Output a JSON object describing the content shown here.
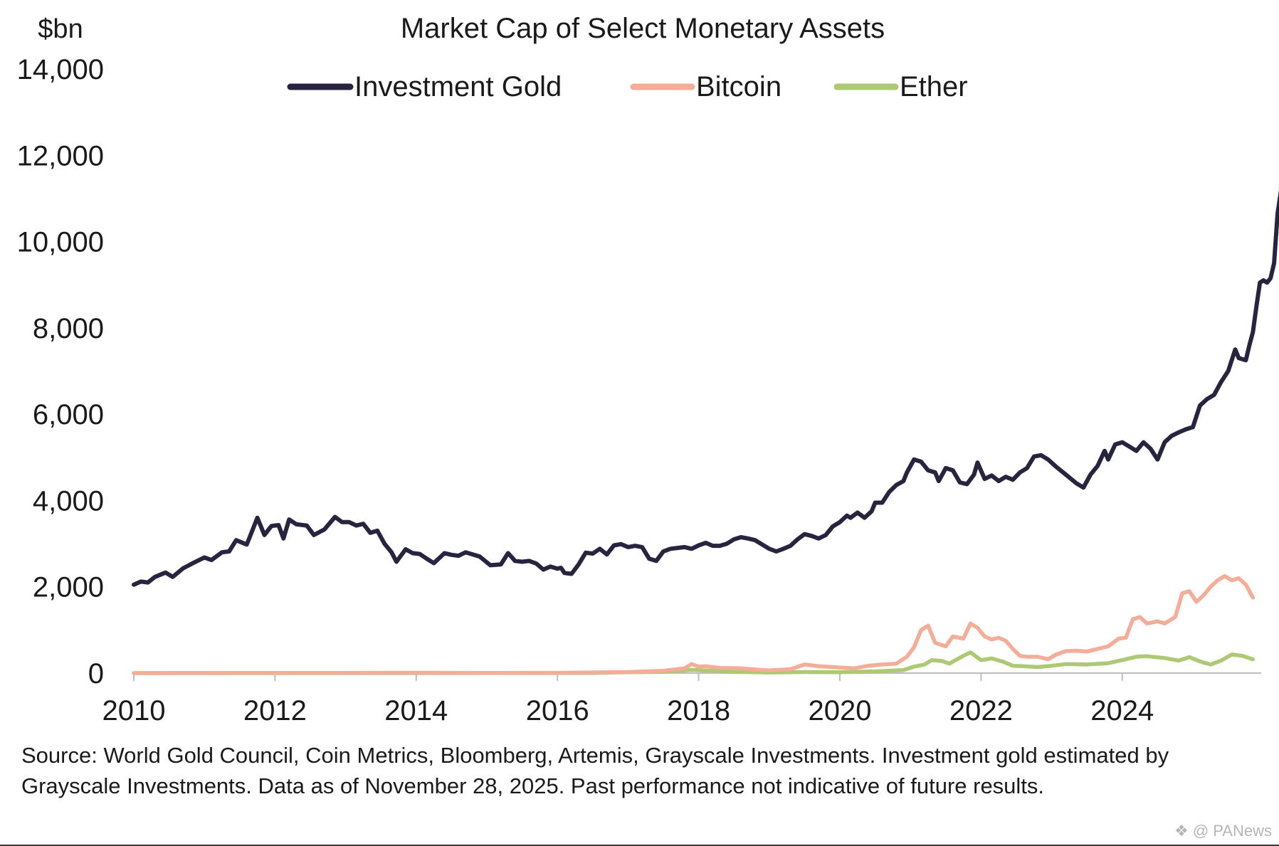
{
  "chart_data": {
    "type": "line",
    "title": "Market Cap of Select Monetary Assets",
    "unit_label": "$bn",
    "xlabel": "",
    "ylabel": "",
    "xlim": [
      2010.0,
      2025.95
    ],
    "ylim": [
      0,
      14000
    ],
    "x_ticks": [
      "2010",
      "2012",
      "2014",
      "2016",
      "2018",
      "2020",
      "2022",
      "2024"
    ],
    "y_ticks": [
      "0",
      "2,000",
      "4,000",
      "6,000",
      "8,000",
      "10,000",
      "12,000",
      "14,000"
    ],
    "grid": false,
    "legend_position": "top-center",
    "series": [
      {
        "name": "Investment Gold",
        "color": "#27243f",
        "points": [
          [
            2010.0,
            2050
          ],
          [
            2010.1,
            2120
          ],
          [
            2010.2,
            2100
          ],
          [
            2010.3,
            2230
          ],
          [
            2010.45,
            2330
          ],
          [
            2010.55,
            2230
          ],
          [
            2010.7,
            2430
          ],
          [
            2010.85,
            2560
          ],
          [
            2011.0,
            2680
          ],
          [
            2011.1,
            2620
          ],
          [
            2011.25,
            2800
          ],
          [
            2011.35,
            2820
          ],
          [
            2011.45,
            3080
          ],
          [
            2011.6,
            2980
          ],
          [
            2011.75,
            3600
          ],
          [
            2011.85,
            3200
          ],
          [
            2011.95,
            3410
          ],
          [
            2012.05,
            3430
          ],
          [
            2012.12,
            3120
          ],
          [
            2012.2,
            3560
          ],
          [
            2012.3,
            3450
          ],
          [
            2012.45,
            3420
          ],
          [
            2012.55,
            3200
          ],
          [
            2012.7,
            3330
          ],
          [
            2012.85,
            3620
          ],
          [
            2012.95,
            3500
          ],
          [
            2013.05,
            3500
          ],
          [
            2013.15,
            3420
          ],
          [
            2013.25,
            3460
          ],
          [
            2013.35,
            3250
          ],
          [
            2013.45,
            3300
          ],
          [
            2013.55,
            3000
          ],
          [
            2013.65,
            2800
          ],
          [
            2013.72,
            2580
          ],
          [
            2013.85,
            2870
          ],
          [
            2013.95,
            2780
          ],
          [
            2014.05,
            2760
          ],
          [
            2014.15,
            2650
          ],
          [
            2014.25,
            2550
          ],
          [
            2014.4,
            2780
          ],
          [
            2014.5,
            2740
          ],
          [
            2014.6,
            2720
          ],
          [
            2014.7,
            2800
          ],
          [
            2014.8,
            2750
          ],
          [
            2014.9,
            2700
          ],
          [
            2015.05,
            2500
          ],
          [
            2015.2,
            2520
          ],
          [
            2015.3,
            2780
          ],
          [
            2015.4,
            2600
          ],
          [
            2015.5,
            2580
          ],
          [
            2015.6,
            2600
          ],
          [
            2015.7,
            2540
          ],
          [
            2015.8,
            2400
          ],
          [
            2015.9,
            2470
          ],
          [
            2016.0,
            2420
          ],
          [
            2016.05,
            2440
          ],
          [
            2016.1,
            2320
          ],
          [
            2016.2,
            2300
          ],
          [
            2016.3,
            2520
          ],
          [
            2016.4,
            2790
          ],
          [
            2016.5,
            2770
          ],
          [
            2016.6,
            2880
          ],
          [
            2016.7,
            2750
          ],
          [
            2016.8,
            2960
          ],
          [
            2016.9,
            2990
          ],
          [
            2017.0,
            2920
          ],
          [
            2017.1,
            2950
          ],
          [
            2017.2,
            2920
          ],
          [
            2017.3,
            2650
          ],
          [
            2017.4,
            2600
          ],
          [
            2017.5,
            2820
          ],
          [
            2017.6,
            2880
          ],
          [
            2017.7,
            2900
          ],
          [
            2017.8,
            2920
          ],
          [
            2017.9,
            2880
          ],
          [
            2018.0,
            2960
          ],
          [
            2018.1,
            3020
          ],
          [
            2018.2,
            2950
          ],
          [
            2018.3,
            2950
          ],
          [
            2018.4,
            3000
          ],
          [
            2018.5,
            3100
          ],
          [
            2018.6,
            3150
          ],
          [
            2018.7,
            3120
          ],
          [
            2018.8,
            3080
          ],
          [
            2018.9,
            2980
          ],
          [
            2019.0,
            2880
          ],
          [
            2019.1,
            2820
          ],
          [
            2019.2,
            2880
          ],
          [
            2019.3,
            2950
          ],
          [
            2019.4,
            3100
          ],
          [
            2019.5,
            3220
          ],
          [
            2019.6,
            3180
          ],
          [
            2019.7,
            3120
          ],
          [
            2019.8,
            3200
          ],
          [
            2019.9,
            3400
          ],
          [
            2020.0,
            3500
          ],
          [
            2020.1,
            3650
          ],
          [
            2020.15,
            3600
          ],
          [
            2020.25,
            3720
          ],
          [
            2020.35,
            3600
          ],
          [
            2020.45,
            3750
          ],
          [
            2020.5,
            3950
          ],
          [
            2020.6,
            3950
          ],
          [
            2020.7,
            4200
          ],
          [
            2020.8,
            4360
          ],
          [
            2020.9,
            4450
          ],
          [
            2020.95,
            4650
          ],
          [
            2021.05,
            4950
          ],
          [
            2021.15,
            4900
          ],
          [
            2021.25,
            4700
          ],
          [
            2021.35,
            4650
          ],
          [
            2021.4,
            4450
          ],
          [
            2021.5,
            4750
          ],
          [
            2021.6,
            4700
          ],
          [
            2021.7,
            4420
          ],
          [
            2021.8,
            4380
          ],
          [
            2021.9,
            4600
          ],
          [
            2021.95,
            4880
          ],
          [
            2022.05,
            4500
          ],
          [
            2022.15,
            4580
          ],
          [
            2022.25,
            4450
          ],
          [
            2022.35,
            4550
          ],
          [
            2022.45,
            4480
          ],
          [
            2022.55,
            4650
          ],
          [
            2022.65,
            4750
          ],
          [
            2022.75,
            5020
          ],
          [
            2022.85,
            5050
          ],
          [
            2022.95,
            4950
          ],
          [
            2023.05,
            4800
          ],
          [
            2023.2,
            4600
          ],
          [
            2023.35,
            4400
          ],
          [
            2023.45,
            4300
          ],
          [
            2023.55,
            4600
          ],
          [
            2023.65,
            4800
          ],
          [
            2023.75,
            5150
          ],
          [
            2023.8,
            4950
          ],
          [
            2023.9,
            5300
          ],
          [
            2024.0,
            5350
          ],
          [
            2024.1,
            5250
          ],
          [
            2024.2,
            5150
          ],
          [
            2024.3,
            5350
          ],
          [
            2024.4,
            5200
          ],
          [
            2024.5,
            4950
          ],
          [
            2024.6,
            5350
          ],
          [
            2024.7,
            5500
          ],
          [
            2024.8,
            5580
          ],
          [
            2024.9,
            5650
          ],
          [
            2025.0,
            5700
          ],
          [
            2025.1,
            6200
          ],
          [
            2025.2,
            6350
          ],
          [
            2025.3,
            6450
          ],
          [
            2025.4,
            6750
          ],
          [
            2025.5,
            7000
          ],
          [
            2025.6,
            7500
          ],
          [
            2025.65,
            7300
          ],
          [
            2025.75,
            7250
          ],
          [
            2025.8,
            7600
          ],
          [
            2025.85,
            7900
          ],
          [
            2025.9,
            8500
          ],
          [
            2025.95,
            9050
          ],
          [
            2026.0,
            9100
          ],
          [
            2026.05,
            9050
          ],
          [
            2026.1,
            9150
          ],
          [
            2026.15,
            9500
          ],
          [
            2026.2,
            10650
          ],
          [
            2026.25,
            11200
          ],
          [
            2026.3,
            11700
          ]
        ]
      },
      {
        "name": "Bitcoin",
        "color": "#f3ad99",
        "points": [
          [
            2010.0,
            0
          ],
          [
            2013.0,
            5
          ],
          [
            2014.0,
            8
          ],
          [
            2015.0,
            4
          ],
          [
            2016.0,
            7
          ],
          [
            2017.0,
            25
          ],
          [
            2017.5,
            55
          ],
          [
            2017.8,
            110
          ],
          [
            2017.9,
            210
          ],
          [
            2018.0,
            150
          ],
          [
            2018.1,
            160
          ],
          [
            2018.3,
            120
          ],
          [
            2018.6,
            110
          ],
          [
            2018.9,
            70
          ],
          [
            2019.0,
            65
          ],
          [
            2019.3,
            90
          ],
          [
            2019.5,
            200
          ],
          [
            2019.7,
            160
          ],
          [
            2019.9,
            140
          ],
          [
            2020.0,
            130
          ],
          [
            2020.2,
            110
          ],
          [
            2020.4,
            170
          ],
          [
            2020.6,
            200
          ],
          [
            2020.8,
            220
          ],
          [
            2020.95,
            380
          ],
          [
            2021.05,
            600
          ],
          [
            2021.15,
            1000
          ],
          [
            2021.25,
            1100
          ],
          [
            2021.35,
            700
          ],
          [
            2021.5,
            620
          ],
          [
            2021.6,
            850
          ],
          [
            2021.75,
            800
          ],
          [
            2021.85,
            1150
          ],
          [
            2021.95,
            1050
          ],
          [
            2022.05,
            850
          ],
          [
            2022.15,
            780
          ],
          [
            2022.25,
            820
          ],
          [
            2022.35,
            750
          ],
          [
            2022.45,
            560
          ],
          [
            2022.55,
            400
          ],
          [
            2022.65,
            380
          ],
          [
            2022.8,
            380
          ],
          [
            2022.95,
            320
          ],
          [
            2023.05,
            420
          ],
          [
            2023.2,
            510
          ],
          [
            2023.35,
            520
          ],
          [
            2023.5,
            500
          ],
          [
            2023.65,
            560
          ],
          [
            2023.8,
            620
          ],
          [
            2023.95,
            800
          ],
          [
            2024.05,
            820
          ],
          [
            2024.15,
            1250
          ],
          [
            2024.25,
            1300
          ],
          [
            2024.35,
            1150
          ],
          [
            2024.5,
            1200
          ],
          [
            2024.6,
            1150
          ],
          [
            2024.75,
            1300
          ],
          [
            2024.85,
            1850
          ],
          [
            2024.95,
            1900
          ],
          [
            2025.05,
            1650
          ],
          [
            2025.15,
            1800
          ],
          [
            2025.25,
            2000
          ],
          [
            2025.35,
            2150
          ],
          [
            2025.45,
            2250
          ],
          [
            2025.55,
            2150
          ],
          [
            2025.65,
            2200
          ],
          [
            2025.75,
            2050
          ],
          [
            2025.85,
            1750
          ]
        ]
      },
      {
        "name": "Ether",
        "color": "#adc973",
        "points": [
          [
            2010.0,
            0
          ],
          [
            2015.5,
            2
          ],
          [
            2016.5,
            5
          ],
          [
            2017.0,
            20
          ],
          [
            2017.5,
            30
          ],
          [
            2017.9,
            75
          ],
          [
            2018.1,
            60
          ],
          [
            2018.5,
            30
          ],
          [
            2019.0,
            15
          ],
          [
            2019.5,
            25
          ],
          [
            2020.0,
            20
          ],
          [
            2020.5,
            40
          ],
          [
            2020.9,
            70
          ],
          [
            2021.05,
            150
          ],
          [
            2021.2,
            200
          ],
          [
            2021.3,
            300
          ],
          [
            2021.45,
            280
          ],
          [
            2021.55,
            220
          ],
          [
            2021.75,
            400
          ],
          [
            2021.85,
            480
          ],
          [
            2022.0,
            300
          ],
          [
            2022.15,
            340
          ],
          [
            2022.3,
            270
          ],
          [
            2022.45,
            170
          ],
          [
            2022.6,
            160
          ],
          [
            2022.8,
            140
          ],
          [
            2023.0,
            170
          ],
          [
            2023.2,
            210
          ],
          [
            2023.5,
            200
          ],
          [
            2023.8,
            230
          ],
          [
            2024.05,
            320
          ],
          [
            2024.2,
            380
          ],
          [
            2024.35,
            390
          ],
          [
            2024.6,
            350
          ],
          [
            2024.8,
            290
          ],
          [
            2024.95,
            370
          ],
          [
            2025.1,
            270
          ],
          [
            2025.25,
            200
          ],
          [
            2025.4,
            290
          ],
          [
            2025.55,
            430
          ],
          [
            2025.7,
            400
          ],
          [
            2025.85,
            320
          ]
        ]
      }
    ]
  },
  "footer": {
    "source_note": "Source: World Gold Council, Coin Metrics, Bloomberg, Artemis, Grayscale Investments. Investment gold estimated by Grayscale Investments. Data as of November 28, 2025. Past performance not indicative of future results.",
    "watermark": "❖ @ PANews"
  }
}
